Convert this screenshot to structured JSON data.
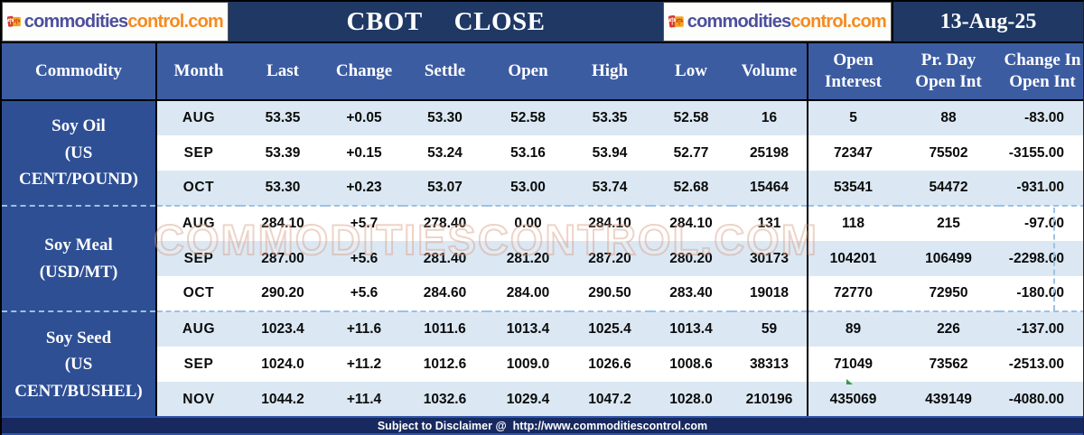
{
  "titlebar": {
    "title": "CBOT  CLOSE",
    "date": "13-Aug-25",
    "logo": {
      "part1": "commodities",
      "part2": "control.com"
    }
  },
  "table": {
    "headers": [
      "Commodity",
      "Month",
      "Last",
      "Change",
      "Settle",
      "Open",
      "High",
      "Low",
      "Volume",
      "Open\nInterest",
      "Pr. Day\nOpen Int",
      "Change In\nOpen Int"
    ],
    "groups": [
      {
        "commodity": "Soy Oil",
        "unit": "(US CENT/POUND)",
        "rows": [
          [
            "AUG",
            "53.35",
            "+0.05",
            "53.30",
            "52.58",
            "53.35",
            "52.58",
            "16",
            "5",
            "88",
            "-83.00"
          ],
          [
            "SEP",
            "53.39",
            "+0.15",
            "53.24",
            "53.16",
            "53.94",
            "52.77",
            "25198",
            "72347",
            "75502",
            "-3155.00"
          ],
          [
            "OCT",
            "53.30",
            "+0.23",
            "53.07",
            "53.00",
            "53.74",
            "52.68",
            "15464",
            "53541",
            "54472",
            "-931.00"
          ]
        ]
      },
      {
        "commodity": "Soy Meal",
        "unit": "(USD/MT)",
        "rows": [
          [
            "AUG",
            "284.10",
            "+5.7",
            "278.40",
            "0.00",
            "284.10",
            "284.10",
            "131",
            "118",
            "215",
            "-97.00"
          ],
          [
            "SEP",
            "287.00",
            "+5.6",
            "281.40",
            "281.20",
            "287.20",
            "280.20",
            "30173",
            "104201",
            "106499",
            "-2298.00"
          ],
          [
            "OCT",
            "290.20",
            "+5.6",
            "284.60",
            "284.00",
            "290.50",
            "283.40",
            "19018",
            "72770",
            "72950",
            "-180.00"
          ]
        ]
      },
      {
        "commodity": "Soy Seed",
        "unit": "(US CENT/BUSHEL)",
        "rows": [
          [
            "AUG",
            "1023.4",
            "+11.6",
            "1011.6",
            "1013.4",
            "1025.4",
            "1013.4",
            "59",
            "89",
            "226",
            "-137.00"
          ],
          [
            "SEP",
            "1024.0",
            "+11.2",
            "1012.6",
            "1009.0",
            "1026.6",
            "1008.6",
            "38313",
            "71049",
            "73562",
            "-2513.00"
          ],
          [
            "NOV",
            "1044.2",
            "+11.4",
            "1032.6",
            "1029.4",
            "1047.2",
            "1028.0",
            "210196",
            "435069",
            "439149",
            "-4080.00"
          ]
        ]
      }
    ]
  },
  "watermark": "COMMODITIESCONTROL.COM",
  "footer": {
    "prefix": "Subject to Disclaimer @",
    "url": "http://www.commoditiescontrol.com"
  },
  "colors": {
    "title_navy": "#1f3864",
    "header_blue": "#3c5ca2",
    "commodity_blue": "#2e4f94",
    "row_alt_blue": "#dbe8f4",
    "footer_navy": "#17295f",
    "accent_blue_line": "#2e54ab",
    "dashed_selection": "#9cc2e5",
    "brand_purple": "#4c4f9c",
    "brand_orange": "#f68b1f"
  }
}
